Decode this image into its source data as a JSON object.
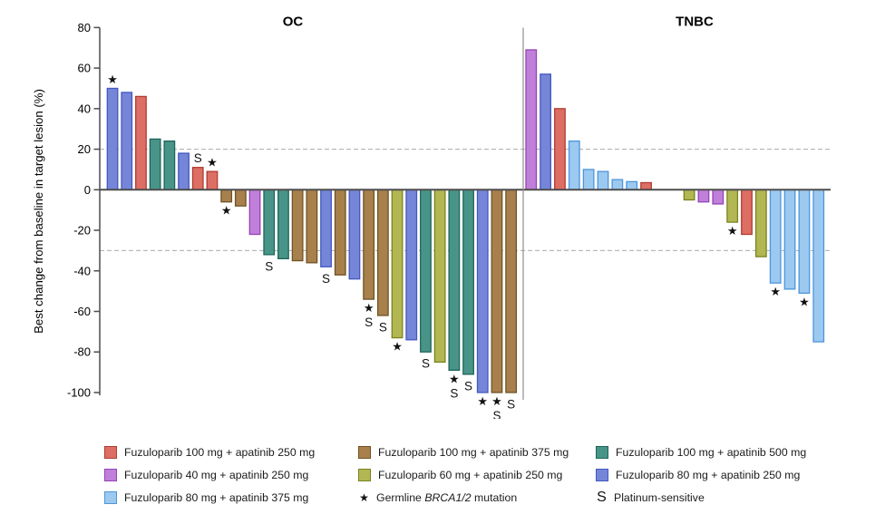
{
  "treatments": {
    "red": {
      "label": "Fuzuloparib 100 mg + apatinib 250 mg",
      "fill": "#DD6E64",
      "stroke": "#B03B31"
    },
    "purple": {
      "label": "Fuzuloparib 40 mg + apatinib 250 mg",
      "fill": "#C07FD9",
      "stroke": "#9444B5"
    },
    "skyblue": {
      "label": "Fuzuloparib 80 mg + apatinib 375 mg",
      "fill": "#9CC9F0",
      "stroke": "#4D95DC"
    },
    "brown": {
      "label": "Fuzuloparib 100 mg + apatinib 375 mg",
      "fill": "#A8804C",
      "stroke": "#6F5224"
    },
    "olive": {
      "label": "Fuzuloparib 60 mg + apatinib 250 mg",
      "fill": "#B2B754",
      "stroke": "#79831D"
    },
    "teal": {
      "label": "Fuzuloparib 100 mg + apatinib 500 mg",
      "fill": "#489488",
      "stroke": "#1F655B"
    },
    "blue": {
      "label": "Fuzuloparib 80 mg + apatinib 250 mg",
      "fill": "#7586D8",
      "stroke": "#4457C0"
    }
  },
  "chart_data": {
    "type": "bar",
    "ylabel": "Best change from baseline in target lesion (%)",
    "ylim": [
      -105,
      80
    ],
    "yticks": [
      80,
      60,
      40,
      20,
      0,
      -20,
      -40,
      -60,
      -80,
      -100
    ],
    "reference_lines": [
      20,
      -30
    ],
    "grid": "dashed-reference-lines-only",
    "mark_meanings": {
      "*": "Germline BRCA1/2 mutation",
      "S": "Platinum-sensitive"
    },
    "panels": [
      {
        "name": "OC",
        "bars": [
          {
            "value": 50,
            "treatment": "blue",
            "mark": "*"
          },
          {
            "value": 48,
            "treatment": "blue"
          },
          {
            "value": 46,
            "treatment": "red"
          },
          {
            "value": 25,
            "treatment": "teal"
          },
          {
            "value": 24,
            "treatment": "teal"
          },
          {
            "value": 18,
            "treatment": "blue"
          },
          {
            "value": 11,
            "treatment": "red",
            "mark": "S"
          },
          {
            "value": 9,
            "treatment": "red",
            "mark": "*"
          },
          {
            "value": -6,
            "treatment": "brown",
            "mark": "*"
          },
          {
            "value": -8,
            "treatment": "brown"
          },
          {
            "value": -22,
            "treatment": "purple"
          },
          {
            "value": -32,
            "treatment": "teal",
            "mark": "S"
          },
          {
            "value": -34,
            "treatment": "teal"
          },
          {
            "value": -35,
            "treatment": "brown"
          },
          {
            "value": -36,
            "treatment": "brown"
          },
          {
            "value": -38,
            "treatment": "blue",
            "mark": "S"
          },
          {
            "value": -42,
            "treatment": "brown"
          },
          {
            "value": -44,
            "treatment": "blue"
          },
          {
            "value": -54,
            "treatment": "brown",
            "mark": "*S"
          },
          {
            "value": -62,
            "treatment": "brown",
            "mark": "S"
          },
          {
            "value": -73,
            "treatment": "olive",
            "mark": "*"
          },
          {
            "value": -74,
            "treatment": "blue"
          },
          {
            "value": -80,
            "treatment": "teal",
            "mark": "S"
          },
          {
            "value": -85,
            "treatment": "olive"
          },
          {
            "value": -89,
            "treatment": "teal",
            "mark": "*S"
          },
          {
            "value": -91,
            "treatment": "teal",
            "mark": "S"
          },
          {
            "value": -100,
            "treatment": "blue",
            "mark": "*"
          },
          {
            "value": -100,
            "treatment": "brown",
            "mark": "*S"
          },
          {
            "value": -100,
            "treatment": "brown",
            "mark": "S"
          }
        ]
      },
      {
        "name": "TNBC",
        "bars": [
          {
            "value": 69,
            "treatment": "purple",
            "slot": 0
          },
          {
            "value": 57,
            "treatment": "blue",
            "slot": 1
          },
          {
            "value": 40,
            "treatment": "red",
            "slot": 2
          },
          {
            "value": 24,
            "treatment": "skyblue",
            "slot": 3
          },
          {
            "value": 10,
            "treatment": "skyblue",
            "slot": 4
          },
          {
            "value": 9,
            "treatment": "skyblue",
            "slot": 5
          },
          {
            "value": 5,
            "treatment": "skyblue",
            "slot": 6
          },
          {
            "value": 4,
            "treatment": "skyblue",
            "slot": 7
          },
          {
            "value": 3.5,
            "treatment": "red",
            "slot": 8
          },
          {
            "value": -5,
            "treatment": "olive",
            "slot": 11
          },
          {
            "value": -6,
            "treatment": "purple",
            "slot": 12
          },
          {
            "value": -7,
            "treatment": "purple",
            "slot": 13
          },
          {
            "value": -16,
            "treatment": "olive",
            "mark": "*",
            "slot": 14
          },
          {
            "value": -22,
            "treatment": "red",
            "slot": 15
          },
          {
            "value": -33,
            "treatment": "olive",
            "slot": 16
          },
          {
            "value": -46,
            "treatment": "skyblue",
            "mark": "*",
            "slot": 17
          },
          {
            "value": -49,
            "treatment": "skyblue",
            "slot": 18
          },
          {
            "value": -51,
            "treatment": "skyblue",
            "mark": "*",
            "slot": 19
          },
          {
            "value": -75,
            "treatment": "skyblue",
            "slot": 20
          }
        ]
      }
    ]
  },
  "legend": {
    "columns": [
      [
        {
          "swatch": "red"
        },
        {
          "swatch": "purple"
        },
        {
          "swatch": "skyblue"
        }
      ],
      [
        {
          "swatch": "brown"
        },
        {
          "swatch": "olive"
        },
        {
          "symbol": "*",
          "label_parts": [
            {
              "t": "Germline "
            },
            {
              "t": "BRCA1/2",
              "italic": true
            },
            {
              "t": " mutation"
            }
          ]
        }
      ],
      [
        {
          "swatch": "teal"
        },
        {
          "swatch": "blue"
        },
        {
          "symbol": "S",
          "label": "Platinum-sensitive"
        }
      ]
    ]
  }
}
